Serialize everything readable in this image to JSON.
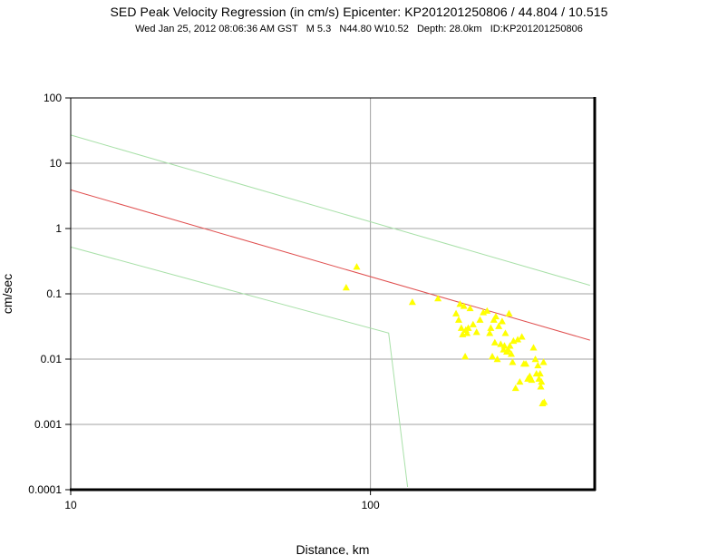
{
  "header": {
    "title": "SED Peak Velocity Regression (in cm/s) Epicenter: KP201201250806 / 44.804 / 10.515",
    "date": "Wed Jan 25, 2012 08:06:36 AM GST",
    "magnitude": "M 5.3",
    "coords": "N44.80 W10.52",
    "depth": "Depth: 28.0km",
    "id": "ID:KP201201250806"
  },
  "chart_data": {
    "type": "scatter",
    "title": "SED Peak Velocity Regression (in cm/s) Epicenter: KP201201250806 / 44.804 / 10.515",
    "xlabel": "Distance, km",
    "ylabel": "cm/sec",
    "xscale": "log",
    "yscale": "log",
    "xlim": [
      10,
      560
    ],
    "ylim": [
      0.0001,
      100
    ],
    "grid": true,
    "x_ticks": [
      "10",
      "100"
    ],
    "y_ticks": [
      "0.0001",
      "0.001",
      "0.01",
      "0.1",
      "1",
      "10",
      "100"
    ],
    "colors": {
      "points": "#ffff00",
      "regression": "#e05050",
      "bounds": "#a8e0a8",
      "grid": "#a0a0a0"
    },
    "regression": {
      "x": [
        10,
        540
      ],
      "y": [
        3.9,
        0.0195
      ]
    },
    "upper_bound": {
      "x": [
        10,
        540
      ],
      "y": [
        27,
        0.135
      ]
    },
    "lower_bound": {
      "x": [
        10,
        115,
        133
      ],
      "y": [
        0.52,
        0.025,
        0.00011
      ]
    },
    "stations": {
      "x": [
        83,
        90,
        138,
        168,
        193,
        197,
        199,
        201,
        203,
        205,
        207,
        208,
        210,
        212,
        215,
        220,
        226,
        232,
        238,
        245,
        250,
        252,
        255,
        258,
        260,
        262,
        265,
        268,
        272,
        275,
        278,
        280,
        282,
        285,
        288,
        290,
        292,
        295,
        298,
        300,
        305,
        310,
        315,
        320,
        325,
        330,
        335,
        340,
        345,
        350,
        355,
        358,
        362,
        365,
        368,
        370,
        372,
        375,
        378,
        380
      ],
      "y": [
        0.125,
        0.26,
        0.075,
        0.085,
        0.05,
        0.04,
        0.07,
        0.03,
        0.024,
        0.065,
        0.011,
        0.028,
        0.025,
        0.03,
        0.06,
        0.034,
        0.026,
        0.04,
        0.052,
        0.055,
        0.025,
        0.03,
        0.011,
        0.04,
        0.018,
        0.045,
        0.01,
        0.032,
        0.017,
        0.038,
        0.014,
        0.016,
        0.025,
        0.013,
        0.014,
        0.05,
        0.016,
        0.012,
        0.009,
        0.019,
        0.0036,
        0.02,
        0.0045,
        0.022,
        0.0085,
        0.0085,
        0.005,
        0.0055,
        0.0048,
        0.015,
        0.01,
        0.006,
        0.008,
        0.005,
        0.006,
        0.0038,
        0.0045,
        0.0021,
        0.009,
        0.0022
      ]
    }
  }
}
